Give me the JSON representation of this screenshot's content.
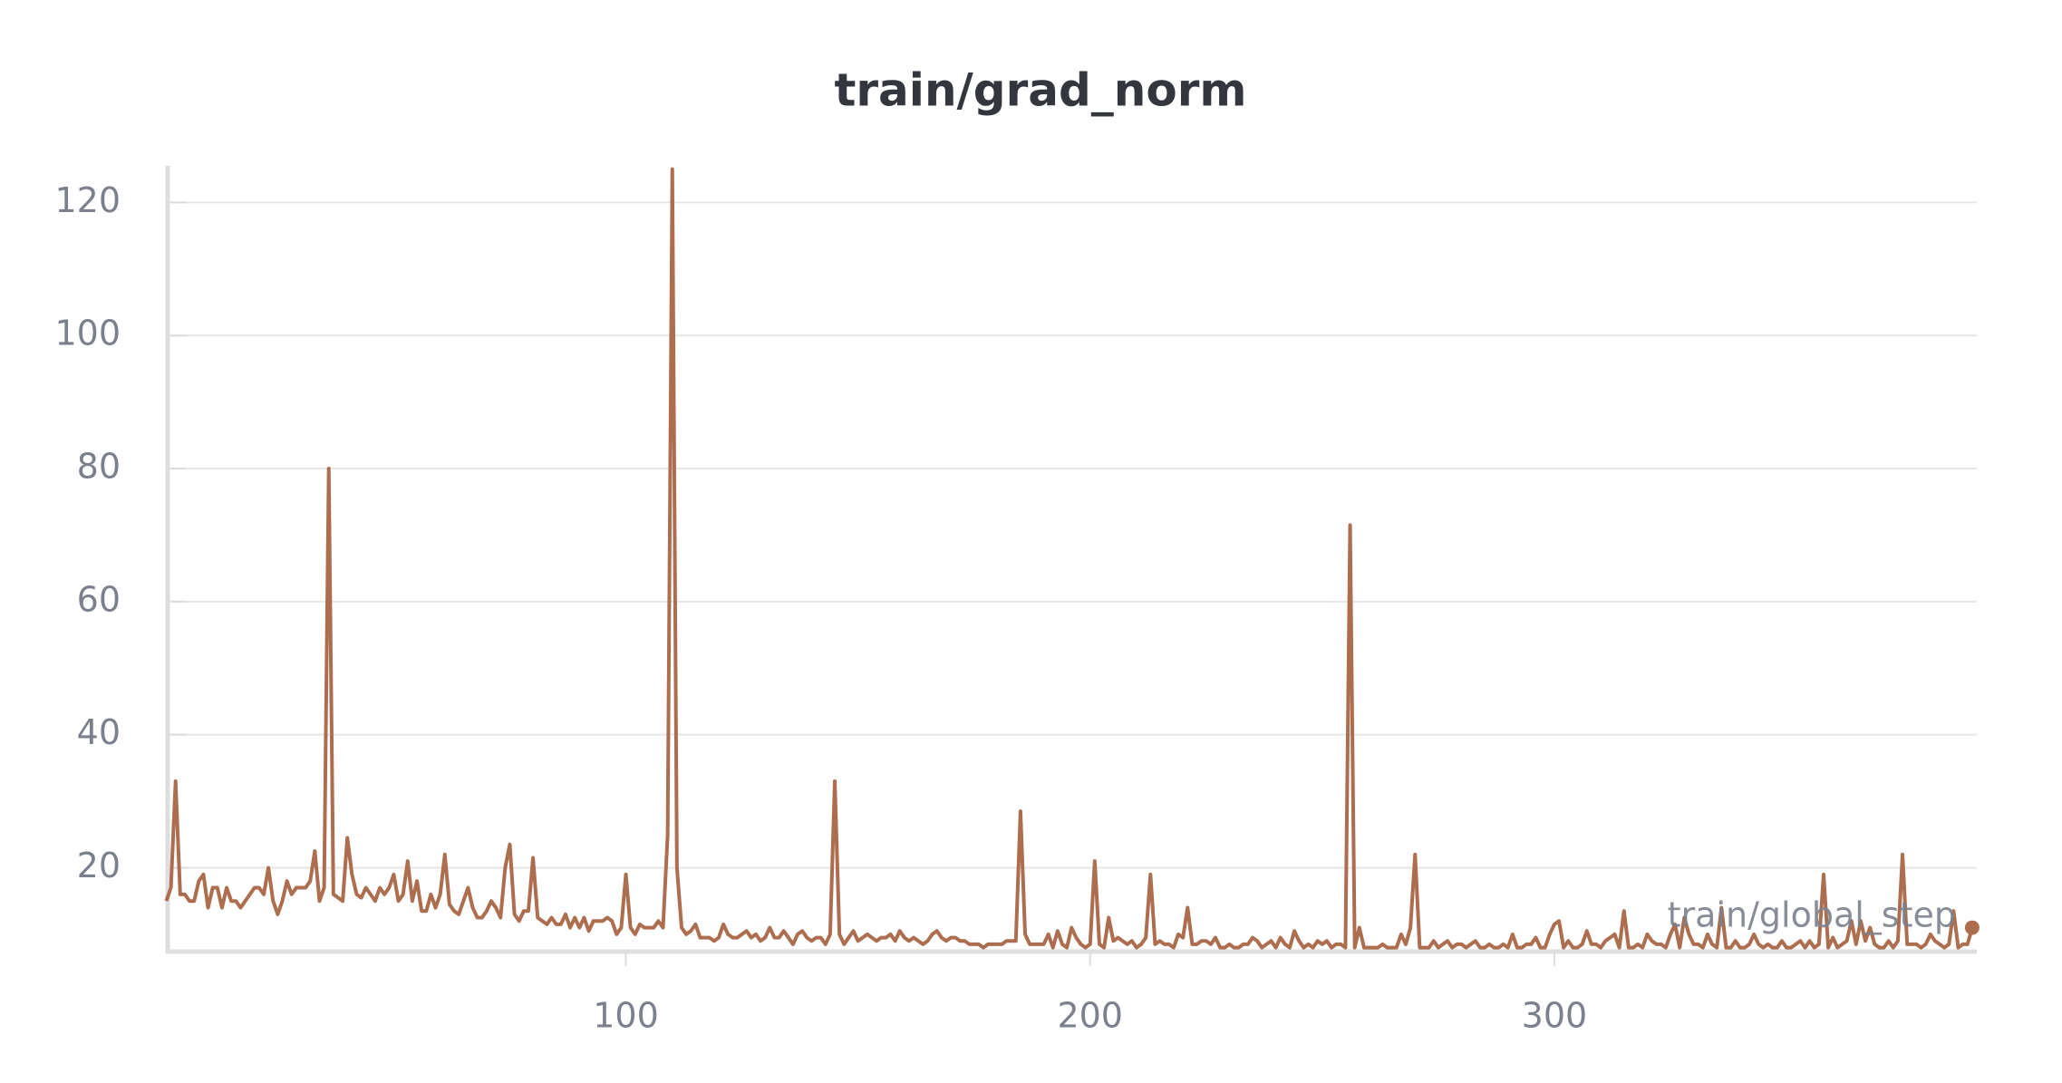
{
  "chart_data": {
    "type": "line",
    "title": "train/grad_norm",
    "x_label": "train/global_step",
    "color": "#ad6e4f",
    "grid": true,
    "xlim": [
      1.3,
      391
    ],
    "ylim": [
      7.4,
      125.5
    ],
    "xticks": [
      100,
      200,
      300
    ],
    "yticks": [
      20,
      40,
      60,
      80,
      100,
      120
    ],
    "x": [
      1,
      2,
      3,
      4,
      5,
      6,
      7,
      8,
      9,
      10,
      11,
      12,
      13,
      14,
      15,
      16,
      17,
      18,
      19,
      20,
      21,
      22,
      23,
      24,
      25,
      26,
      27,
      28,
      29,
      30,
      31,
      32,
      33,
      34,
      35,
      36,
      37,
      38,
      39,
      40,
      41,
      42,
      43,
      44,
      45,
      46,
      47,
      48,
      49,
      50,
      51,
      52,
      53,
      54,
      55,
      56,
      57,
      58,
      59,
      60,
      61,
      62,
      63,
      64,
      65,
      66,
      67,
      68,
      69,
      70,
      71,
      72,
      73,
      74,
      75,
      76,
      77,
      78,
      79,
      80,
      81,
      82,
      83,
      84,
      85,
      86,
      87,
      88,
      89,
      90,
      91,
      92,
      93,
      94,
      95,
      96,
      97,
      98,
      99,
      100,
      101,
      102,
      103,
      104,
      105,
      106,
      107,
      108,
      109,
      110,
      111,
      112,
      113,
      114,
      115,
      116,
      117,
      118,
      119,
      120,
      121,
      122,
      123,
      124,
      125,
      126,
      127,
      128,
      129,
      130,
      131,
      132,
      133,
      134,
      135,
      136,
      137,
      138,
      139,
      140,
      141,
      142,
      143,
      144,
      145,
      146,
      147,
      148,
      149,
      150,
      151,
      152,
      153,
      154,
      155,
      156,
      157,
      158,
      159,
      160,
      161,
      162,
      163,
      164,
      165,
      166,
      167,
      168,
      169,
      170,
      171,
      172,
      173,
      174,
      175,
      176,
      177,
      178,
      179,
      180,
      181,
      182,
      183,
      184,
      185,
      186,
      187,
      188,
      189,
      190,
      191,
      192,
      193,
      194,
      195,
      196,
      197,
      198,
      199,
      200,
      201,
      202,
      203,
      204,
      205,
      206,
      207,
      208,
      209,
      210,
      211,
      212,
      213,
      214,
      215,
      216,
      217,
      218,
      219,
      220,
      221,
      222,
      223,
      224,
      225,
      226,
      227,
      228,
      229,
      230,
      231,
      232,
      233,
      234,
      235,
      236,
      237,
      238,
      239,
      240,
      241,
      242,
      243,
      244,
      245,
      246,
      247,
      248,
      249,
      250,
      251,
      252,
      253,
      254,
      255,
      256,
      257,
      258,
      259,
      260,
      261,
      262,
      263,
      264,
      265,
      266,
      267,
      268,
      269,
      270,
      271,
      272,
      273,
      274,
      275,
      276,
      277,
      278,
      279,
      280,
      281,
      282,
      283,
      284,
      285,
      286,
      287,
      288,
      289,
      290,
      291,
      292,
      293,
      294,
      295,
      296,
      297,
      298,
      299,
      300,
      301,
      302,
      303,
      304,
      305,
      306,
      307,
      308,
      309,
      310,
      311,
      312,
      313,
      314,
      315,
      316,
      317,
      318,
      319,
      320,
      321,
      322,
      323,
      324,
      325,
      326,
      327,
      328,
      329,
      330,
      331,
      332,
      333,
      334,
      335,
      336,
      337,
      338,
      339,
      340,
      341,
      342,
      343,
      344,
      345,
      346,
      347,
      348,
      349,
      350,
      351,
      352,
      353,
      354,
      355,
      356,
      357,
      358,
      359,
      360,
      361,
      362,
      363,
      364,
      365,
      366,
      367,
      368,
      369,
      370,
      371,
      372,
      373,
      374,
      375,
      376,
      377,
      378,
      379,
      380,
      381,
      382,
      383,
      384,
      385,
      386,
      387,
      388,
      389,
      390
    ],
    "values": [
      15,
      17,
      33,
      16,
      16,
      15,
      15,
      18,
      19,
      14,
      17,
      17,
      14,
      17,
      15,
      15,
      14,
      15,
      16,
      17,
      17,
      16,
      20,
      15,
      13,
      15,
      18,
      16,
      17,
      17,
      17,
      18,
      22.5,
      15,
      17,
      80,
      16,
      15.5,
      15,
      24.5,
      19,
      16,
      15.5,
      17,
      16,
      15,
      17,
      16,
      17,
      19,
      15,
      16,
      21,
      15,
      18,
      13.5,
      13.5,
      16,
      14,
      16,
      22,
      14.5,
      13.5,
      13,
      15,
      17,
      14,
      12.5,
      12.5,
      13.5,
      15,
      14,
      12.5,
      20,
      23.5,
      13,
      12,
      13.5,
      13.5,
      21.5,
      12.5,
      12,
      11.5,
      12.5,
      11.5,
      11.5,
      13,
      11,
      12.5,
      11,
      12.5,
      10.5,
      12,
      12,
      12,
      12.5,
      12,
      10,
      11,
      19,
      11,
      10,
      11.5,
      11,
      11,
      11,
      12,
      11,
      25,
      125,
      20,
      11,
      10,
      10.5,
      11.5,
      9.5,
      9.5,
      9.5,
      9,
      9.5,
      11.5,
      10,
      9.5,
      9.5,
      10,
      10.5,
      9.5,
      10,
      9,
      9.5,
      11,
      9.5,
      9.5,
      10.5,
      9.5,
      8.5,
      10,
      10.5,
      9.5,
      9,
      9.5,
      9.5,
      8.5,
      10,
      33,
      10,
      8.5,
      9.5,
      10.5,
      9,
      9.5,
      10,
      9.5,
      9,
      9.5,
      9.5,
      10,
      9,
      10.5,
      9.5,
      9,
      9.5,
      9,
      8.5,
      9,
      10,
      10.5,
      9.5,
      9,
      9.5,
      9.5,
      9,
      9,
      8.5,
      8.5,
      8.5,
      8,
      8.5,
      8.5,
      8.5,
      8.5,
      9,
      9,
      9,
      28.5,
      10,
      8.5,
      8.5,
      8.5,
      8.5,
      10,
      8,
      10.5,
      8.5,
      8,
      11,
      9.5,
      8.5,
      8,
      8.5,
      21,
      8.5,
      8,
      12.5,
      9,
      9.5,
      9,
      8.5,
      9,
      8,
      8.5,
      9.5,
      19,
      8.5,
      9,
      8.5,
      8.5,
      8,
      10,
      9.5,
      14,
      8.5,
      8.5,
      9,
      9,
      8.5,
      9.5,
      8,
      8,
      8.5,
      8,
      8,
      8.5,
      8.5,
      9.5,
      9,
      8,
      8.5,
      9,
      8,
      9.5,
      8.5,
      8,
      10.5,
      9,
      8,
      8.5,
      8,
      9,
      8.5,
      9,
      8,
      8.5,
      8.5,
      8,
      71.5,
      8,
      11,
      8,
      8,
      8,
      8,
      8.5,
      8,
      8,
      8,
      10,
      8.5,
      11,
      22,
      8,
      8,
      8,
      9,
      8,
      8.5,
      9,
      8,
      8.5,
      8.5,
      8,
      8.5,
      9,
      8,
      8,
      8.5,
      8,
      8,
      8.5,
      8,
      10,
      8,
      8,
      8.5,
      8.5,
      9.5,
      8,
      8,
      10,
      11.5,
      12,
      8,
      9,
      8,
      8,
      8.5,
      10.5,
      8.5,
      8.5,
      8,
      9,
      9.5,
      10,
      8,
      13.5,
      8,
      8,
      8.5,
      8,
      10,
      9,
      8.5,
      8.5,
      8,
      10,
      11.5,
      8,
      12.5,
      10,
      8.5,
      8.5,
      8,
      10,
      8.5,
      8,
      14,
      8,
      8,
      9,
      8,
      8,
      8.5,
      10,
      8.5,
      8,
      8.5,
      8,
      8,
      9,
      8,
      8,
      8.5,
      9,
      8,
      9,
      8,
      8.5,
      19,
      8,
      9.5,
      8,
      8.5,
      9,
      12,
      8.5,
      12,
      9,
      11,
      8.5,
      8,
      8,
      9,
      8,
      9,
      22,
      8.5,
      8.5,
      8.5,
      8,
      8.5,
      10,
      9,
      8.5,
      8,
      8.5,
      13.5,
      8,
      8.5,
      8.5,
      11
    ]
  }
}
